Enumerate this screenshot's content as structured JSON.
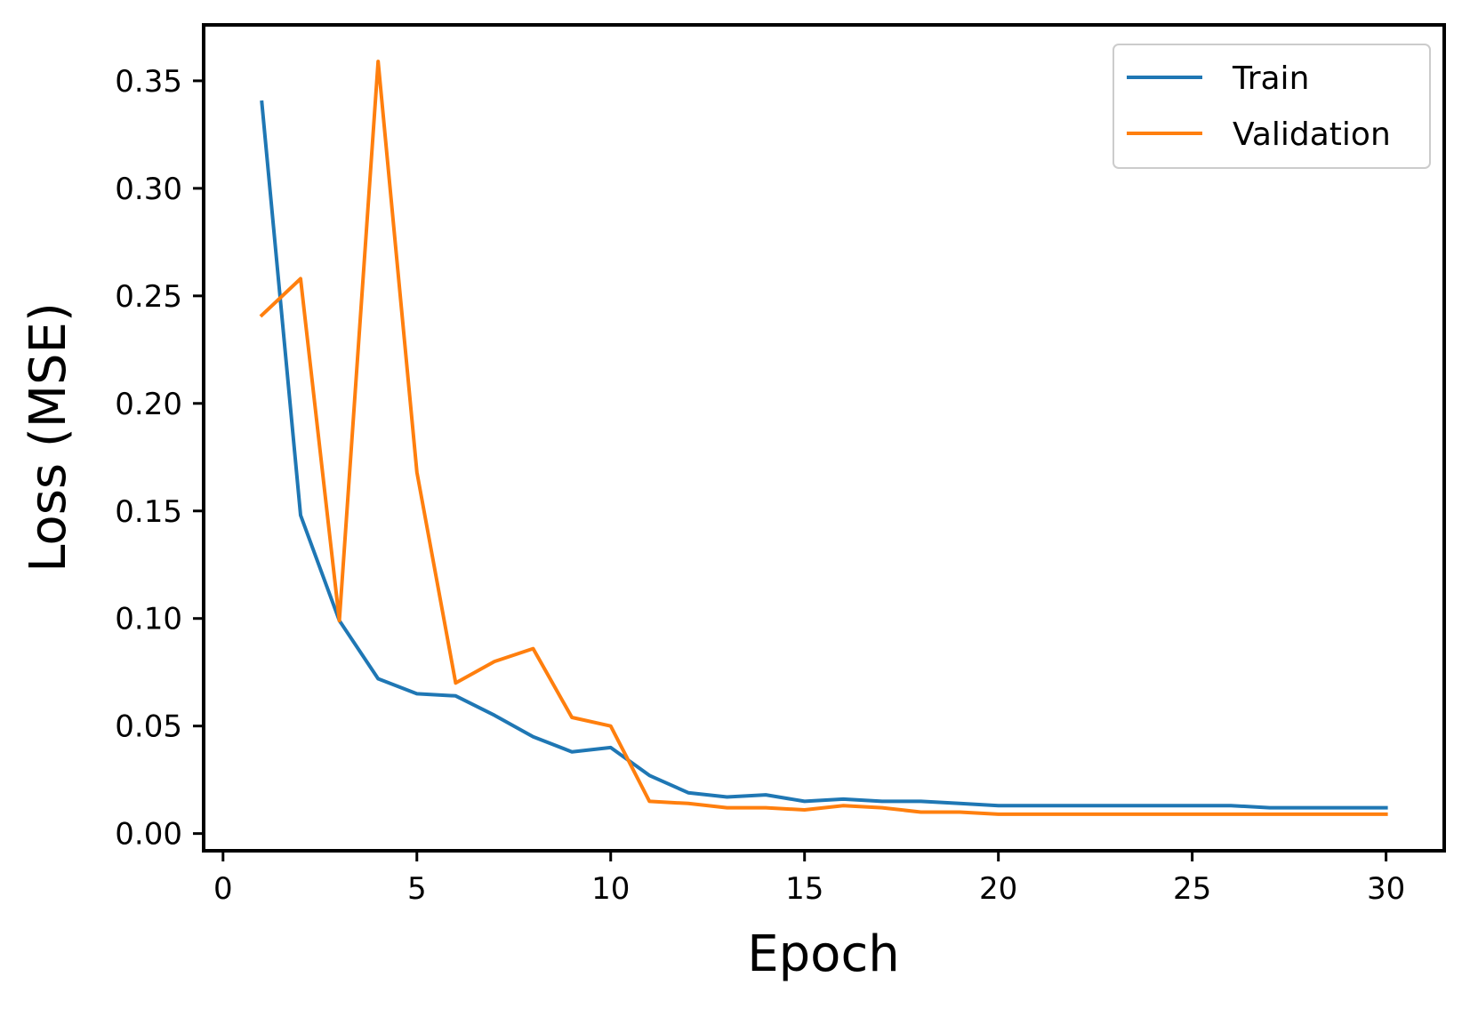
{
  "chart_data": {
    "type": "line",
    "title": "",
    "xlabel": "Epoch",
    "ylabel": "Loss (MSE)",
    "xlim": [
      -0.5,
      31.5
    ],
    "ylim": [
      -0.008,
      0.376
    ],
    "xticks": [
      0,
      5,
      10,
      15,
      20,
      25,
      30
    ],
    "xtick_labels": [
      "0",
      "5",
      "10",
      "15",
      "20",
      "25",
      "30"
    ],
    "yticks": [
      0.0,
      0.05,
      0.1,
      0.15,
      0.2,
      0.25,
      0.3,
      0.35
    ],
    "ytick_labels": [
      "0.00",
      "0.05",
      "0.10",
      "0.15",
      "0.20",
      "0.25",
      "0.30",
      "0.35"
    ],
    "grid": false,
    "legend_position": "top-right",
    "x": [
      1,
      2,
      3,
      4,
      5,
      6,
      7,
      8,
      9,
      10,
      11,
      12,
      13,
      14,
      15,
      16,
      17,
      18,
      19,
      20,
      21,
      22,
      23,
      24,
      25,
      26,
      27,
      28,
      29,
      30
    ],
    "series": [
      {
        "name": "Train",
        "color": "#1f77b4",
        "values": [
          0.34,
          0.148,
          0.099,
          0.072,
          0.065,
          0.064,
          0.055,
          0.045,
          0.038,
          0.04,
          0.027,
          0.019,
          0.017,
          0.018,
          0.015,
          0.016,
          0.015,
          0.015,
          0.014,
          0.013,
          0.013,
          0.013,
          0.013,
          0.013,
          0.013,
          0.013,
          0.012,
          0.012,
          0.012,
          0.012
        ]
      },
      {
        "name": "Validation",
        "color": "#ff7f0e",
        "values": [
          0.241,
          0.258,
          0.099,
          0.359,
          0.168,
          0.07,
          0.08,
          0.086,
          0.054,
          0.05,
          0.015,
          0.014,
          0.012,
          0.012,
          0.011,
          0.013,
          0.012,
          0.01,
          0.01,
          0.009,
          0.009,
          0.009,
          0.009,
          0.009,
          0.009,
          0.009,
          0.009,
          0.009,
          0.009,
          0.009
        ]
      }
    ]
  }
}
